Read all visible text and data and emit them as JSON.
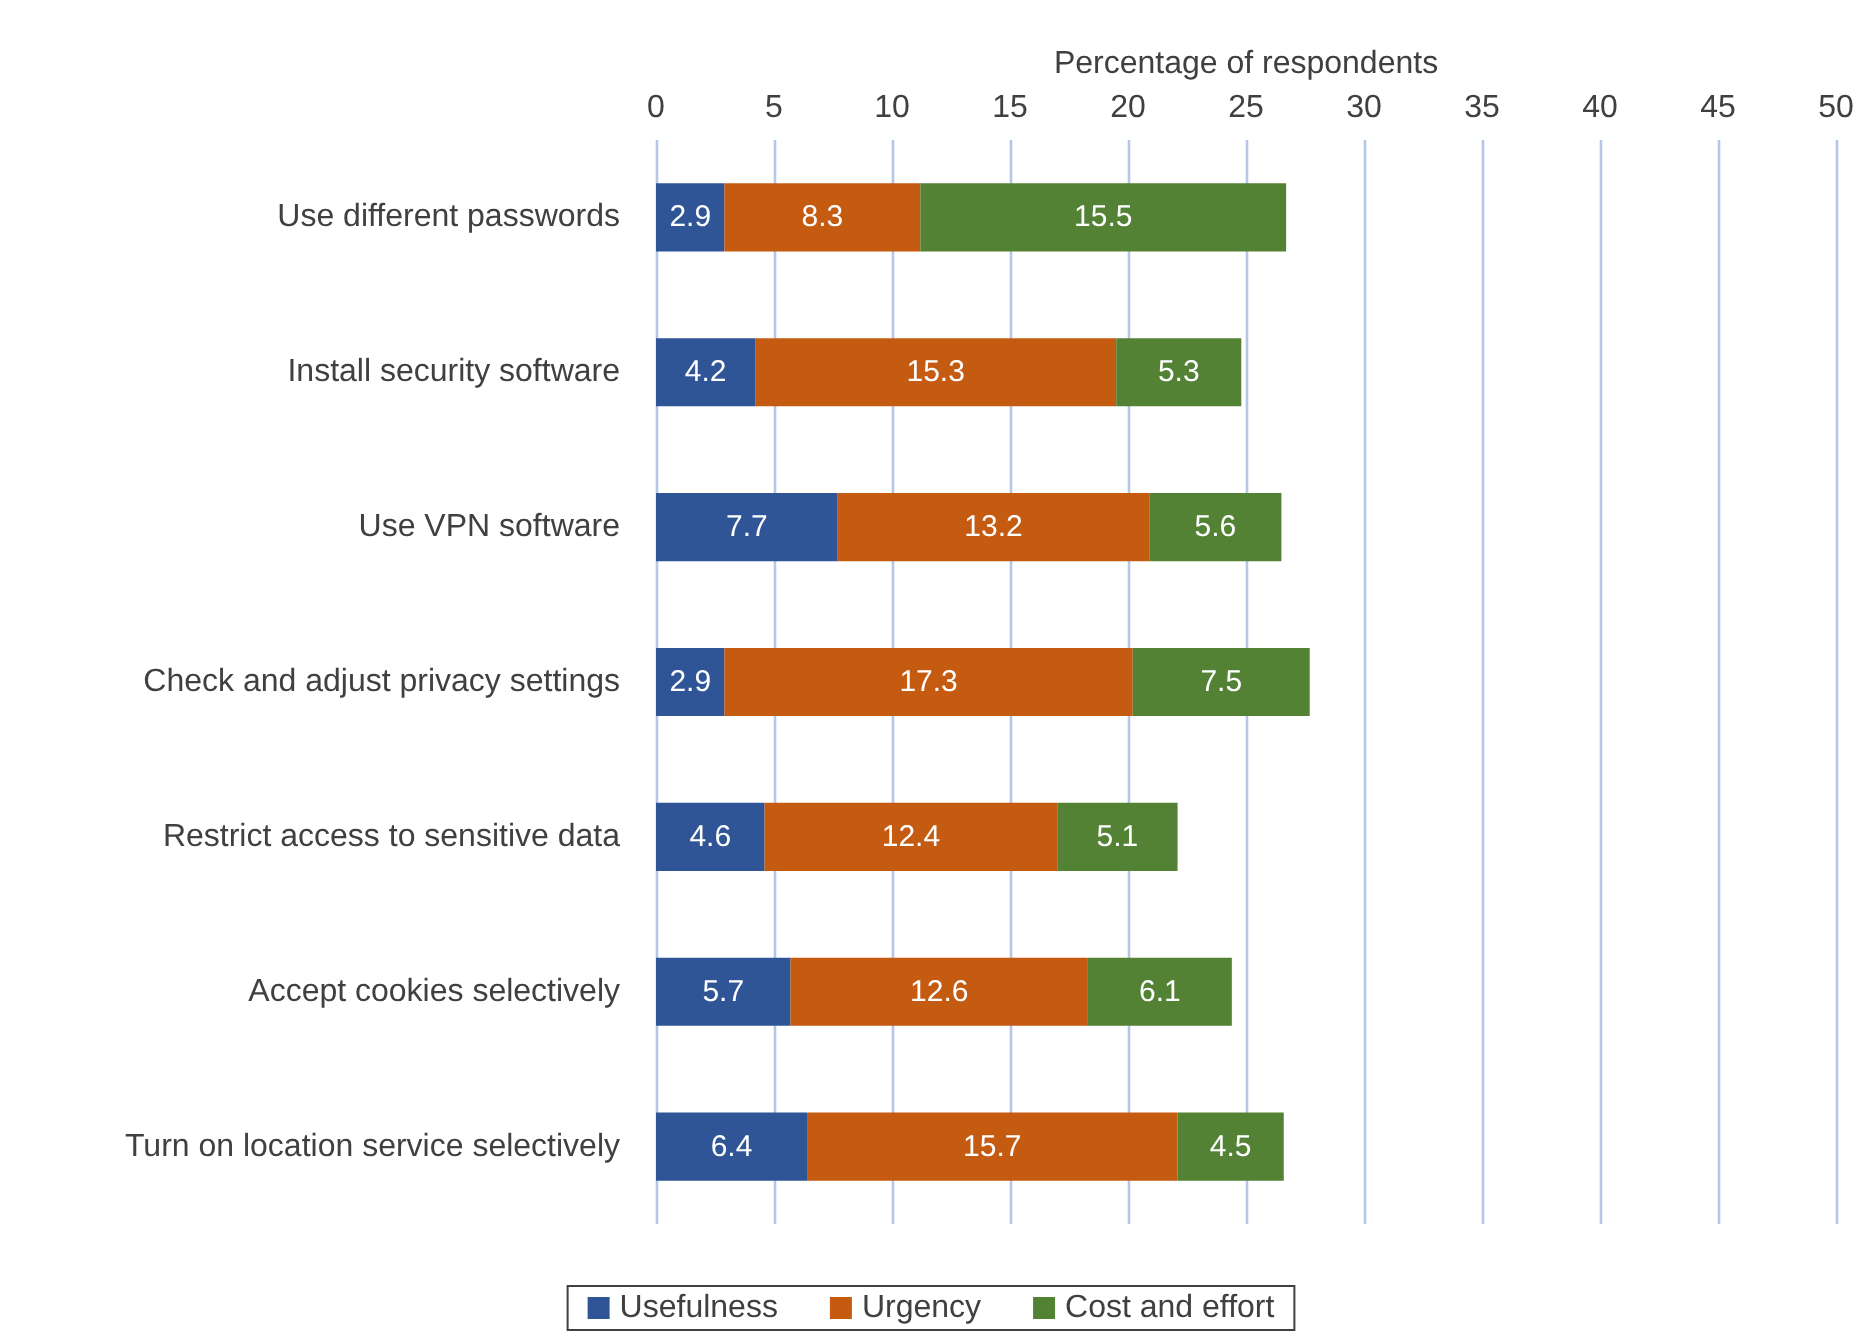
{
  "chart_data": {
    "type": "bar",
    "orientation": "horizontal",
    "stacked": true,
    "xlabel": "Percentage of respondents",
    "categories": [
      "Use different passwords",
      "Install security software",
      "Use VPN software",
      "Check and adjust privacy settings",
      "Restrict access to sensitive data",
      "Accept cookies selectively",
      "Turn on location service selectively"
    ],
    "series": [
      {
        "name": "Usefulness",
        "color": "#2f5597",
        "values": [
          2.9,
          4.2,
          7.7,
          2.9,
          4.6,
          5.7,
          6.4
        ]
      },
      {
        "name": "Urgency",
        "color": "#c55a11",
        "values": [
          8.3,
          15.3,
          13.2,
          17.3,
          12.4,
          12.6,
          15.7
        ]
      },
      {
        "name": "Cost and effort",
        "color": "#548235",
        "values": [
          15.5,
          5.3,
          5.6,
          7.5,
          5.1,
          6.1,
          4.5
        ]
      }
    ],
    "xlim": [
      0,
      50
    ],
    "xticks": [
      0,
      5,
      10,
      15,
      20,
      25,
      30,
      35,
      40,
      45,
      50
    ],
    "grid": "x",
    "legend": "bottom",
    "data_labels": true
  }
}
